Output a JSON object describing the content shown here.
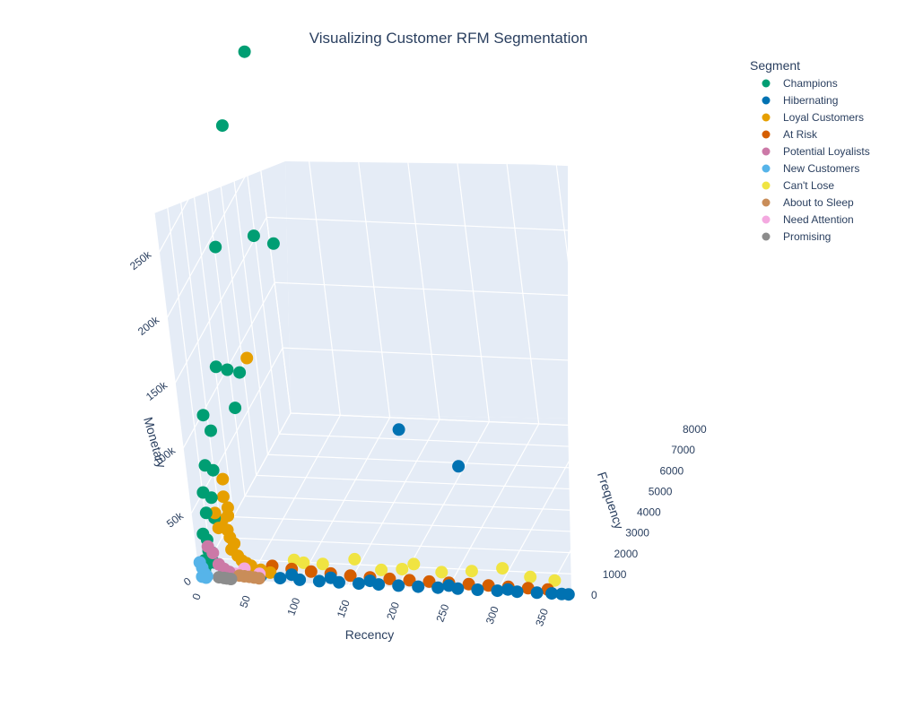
{
  "chart_data": {
    "type": "scatter",
    "title": "Visualizing Customer RFM Segmentation",
    "axes": {
      "x": {
        "label": "Recency",
        "ticks": [
          0,
          50,
          100,
          150,
          200,
          250,
          300,
          350
        ],
        "range": [
          0,
          375
        ]
      },
      "y": {
        "label": "Frequency",
        "ticks": [
          0,
          1000,
          2000,
          3000,
          4000,
          5000,
          6000,
          7000,
          8000
        ],
        "range": [
          0,
          8000
        ]
      },
      "z": {
        "label": "Monetary",
        "ticks": [
          0,
          50000,
          100000,
          150000,
          200000,
          250000
        ],
        "tick_labels": [
          "0",
          "50k",
          "100k",
          "150k",
          "200k",
          "250k"
        ],
        "range": [
          0,
          280000
        ]
      }
    },
    "legend": {
      "title": "Segment",
      "placement": "top-right"
    },
    "series": [
      {
        "name": "Champions",
        "color": "#009e73",
        "points": [
          [
            1,
            7800,
            280000
          ],
          [
            2,
            5500,
            260000
          ],
          [
            4,
            3800,
            194000
          ],
          [
            13,
            6000,
            168000
          ],
          [
            15,
            7200,
            143000
          ],
          [
            8,
            2500,
            123000
          ],
          [
            6,
            1300,
            105000
          ],
          [
            12,
            3000,
            113000
          ],
          [
            9,
            1500,
            90000
          ],
          [
            10,
            4000,
            95000
          ],
          [
            11,
            3300,
            79000
          ],
          [
            3,
            1200,
            68000
          ],
          [
            5,
            1600,
            58000
          ],
          [
            2,
            900,
            52000
          ],
          [
            7,
            1100,
            45000
          ],
          [
            4,
            800,
            38000
          ],
          [
            9,
            1000,
            31000
          ],
          [
            1,
            600,
            25000
          ],
          [
            3,
            700,
            19000
          ],
          [
            6,
            500,
            14000
          ],
          [
            8,
            600,
            11000
          ],
          [
            2,
            400,
            8000
          ],
          [
            5,
            300,
            6000
          ],
          [
            10,
            500,
            5000
          ],
          [
            4,
            200,
            3000
          ]
        ]
      },
      {
        "name": "Hibernating",
        "color": "#0072b2",
        "points": [
          [
            150,
            5000,
            40000
          ],
          [
            220,
            4000,
            30000
          ],
          [
            60,
            200,
            1000
          ],
          [
            80,
            150,
            900
          ],
          [
            100,
            120,
            800
          ],
          [
            120,
            100,
            700
          ],
          [
            140,
            90,
            600
          ],
          [
            160,
            80,
            500
          ],
          [
            180,
            80,
            450
          ],
          [
            200,
            70,
            400
          ],
          [
            220,
            60,
            380
          ],
          [
            240,
            55,
            350
          ],
          [
            260,
            50,
            330
          ],
          [
            280,
            45,
            300
          ],
          [
            300,
            40,
            280
          ],
          [
            320,
            35,
            260
          ],
          [
            340,
            30,
            240
          ],
          [
            355,
            25,
            220
          ],
          [
            365,
            20,
            200
          ],
          [
            372,
            15,
            180
          ],
          [
            90,
            300,
            1500
          ],
          [
            130,
            250,
            1200
          ],
          [
            170,
            200,
            1000
          ],
          [
            250,
            150,
            800
          ],
          [
            310,
            100,
            600
          ]
        ]
      },
      {
        "name": "Loyal Customers",
        "color": "#e69f00",
        "points": [
          [
            5,
            5000,
            90000
          ],
          [
            8,
            2000,
            45000
          ],
          [
            12,
            1600,
            38000
          ],
          [
            18,
            1400,
            33000
          ],
          [
            15,
            1100,
            28000
          ],
          [
            22,
            900,
            24000
          ],
          [
            25,
            800,
            20000
          ],
          [
            30,
            700,
            17000
          ],
          [
            28,
            600,
            14000
          ],
          [
            35,
            500,
            11000
          ],
          [
            40,
            400,
            9000
          ],
          [
            45,
            350,
            8000
          ],
          [
            50,
            300,
            7000
          ],
          [
            60,
            250,
            5000
          ],
          [
            70,
            200,
            4000
          ],
          [
            20,
            1200,
            30000
          ],
          [
            10,
            1000,
            35000
          ],
          [
            14,
            850,
            26000
          ]
        ]
      },
      {
        "name": "At Risk",
        "color": "#d55e00",
        "points": [
          [
            70,
            400,
            6000
          ],
          [
            90,
            350,
            5000
          ],
          [
            110,
            300,
            4500
          ],
          [
            130,
            280,
            4000
          ],
          [
            150,
            250,
            3500
          ],
          [
            170,
            230,
            3200
          ],
          [
            190,
            210,
            3000
          ],
          [
            210,
            200,
            2800
          ],
          [
            230,
            190,
            2600
          ],
          [
            250,
            180,
            2400
          ],
          [
            270,
            170,
            2200
          ],
          [
            290,
            160,
            2000
          ],
          [
            310,
            150,
            1800
          ],
          [
            330,
            140,
            1600
          ],
          [
            350,
            130,
            1400
          ]
        ]
      },
      {
        "name": "Potential Loyalists",
        "color": "#cc79a7",
        "points": [
          [
            10,
            200,
            22000
          ],
          [
            15,
            150,
            18000
          ],
          [
            20,
            120,
            10000
          ],
          [
            25,
            100,
            7000
          ],
          [
            30,
            90,
            5000
          ]
        ]
      },
      {
        "name": "New Customers",
        "color": "#56b4e9",
        "points": [
          [
            2,
            50,
            12000
          ],
          [
            4,
            40,
            8000
          ],
          [
            6,
            30,
            4000
          ],
          [
            8,
            20,
            2000
          ],
          [
            3,
            25,
            1500
          ],
          [
            7,
            15,
            1000
          ]
        ]
      },
      {
        "name": "Can't Lose",
        "color": "#f0e442",
        "points": [
          [
            90,
            600,
            8000
          ],
          [
            120,
            500,
            7500
          ],
          [
            150,
            700,
            9000
          ],
          [
            180,
            400,
            6500
          ],
          [
            210,
            650,
            8000
          ],
          [
            240,
            450,
            6000
          ],
          [
            270,
            500,
            7000
          ],
          [
            300,
            600,
            8500
          ],
          [
            330,
            400,
            6000
          ],
          [
            355,
            350,
            5000
          ],
          [
            100,
            550,
            7000
          ],
          [
            200,
            480,
            6500
          ]
        ]
      },
      {
        "name": "About to Sleep",
        "color": "#c98d59",
        "points": [
          [
            30,
            100,
            3000
          ],
          [
            40,
            90,
            2500
          ],
          [
            50,
            80,
            2000
          ],
          [
            55,
            70,
            1800
          ],
          [
            60,
            60,
            1500
          ],
          [
            45,
            85,
            2200
          ]
        ]
      },
      {
        "name": "Need Attention",
        "color": "#f4a9e0",
        "points": [
          [
            45,
            150,
            7000
          ],
          [
            60,
            120,
            4000
          ],
          [
            35,
            130,
            3000
          ]
        ]
      },
      {
        "name": "Promising",
        "color": "#8c8c8c",
        "points": [
          [
            20,
            30,
            1500
          ],
          [
            25,
            25,
            1200
          ],
          [
            28,
            20,
            1000
          ],
          [
            32,
            15,
            800
          ]
        ]
      }
    ]
  }
}
